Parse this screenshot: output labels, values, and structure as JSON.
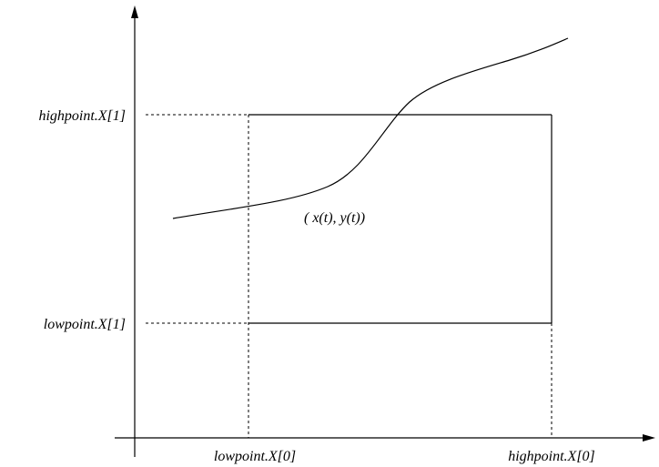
{
  "labels": {
    "y_high": "highpoint.X[1]",
    "y_low": "lowpoint.X[1]",
    "x_low": "lowpoint.X[0]",
    "x_high": "highpoint.X[0]",
    "curve_point": "( x(t), y(t))"
  },
  "colors": {
    "stroke": "#000000",
    "background": "#ffffff"
  }
}
